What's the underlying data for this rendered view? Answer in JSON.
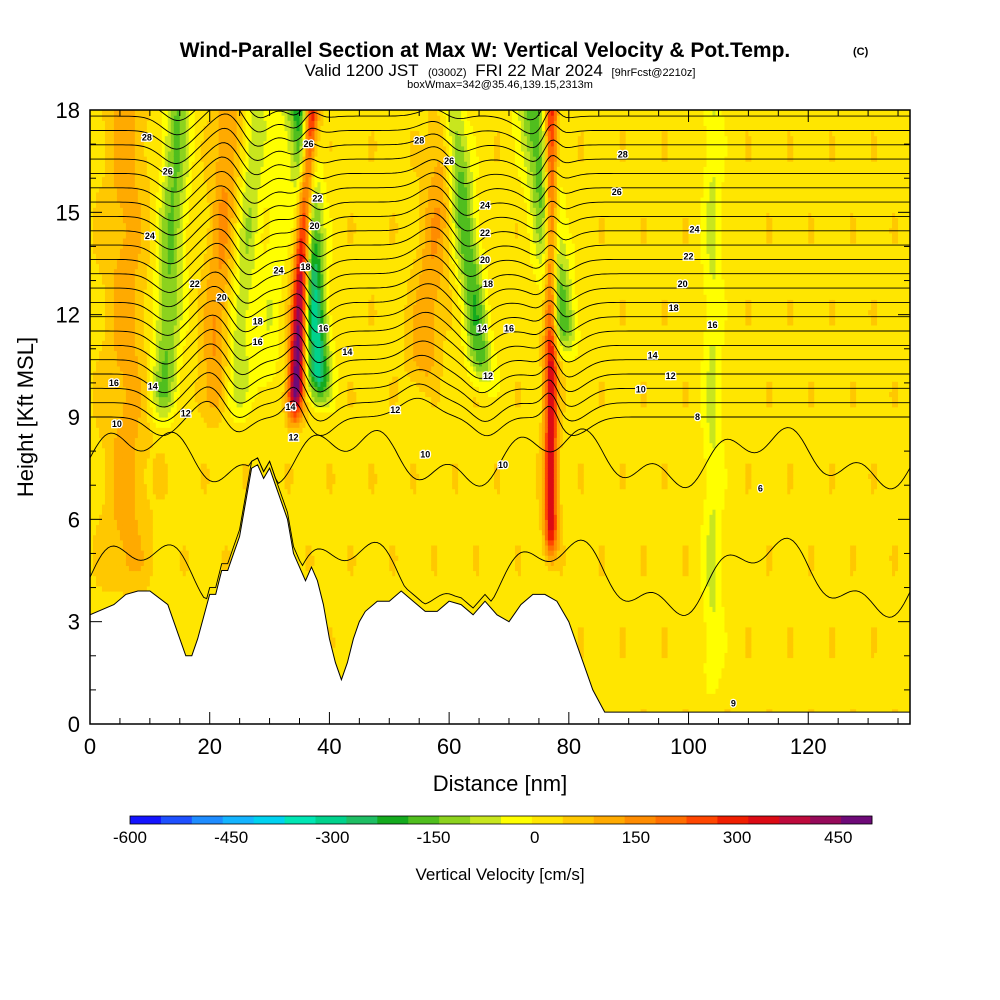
{
  "header": {
    "title": "Wind-Parallel Section at Max W: Vertical Velocity & Pot.Temp.",
    "copyright": "(C)",
    "valid_prefix": "Valid 1200 JST",
    "valid_utc": "(0300Z)",
    "valid_date": "FRI 22 Mar 2024",
    "forecast": "[9hrFcst@2210z]",
    "boxinfo": "boxWmax=342@35.46,139.15,2313m"
  },
  "colorbar": {
    "label": "Vertical Velocity [cm/s]",
    "tick_labels": [
      "-600",
      "-450",
      "-300",
      "-150",
      "0",
      "150",
      "300",
      "450"
    ],
    "colors": [
      "#1414ff",
      "#1e50ff",
      "#1e8cff",
      "#14b4ff",
      "#00d2f0",
      "#00e6b4",
      "#00d28c",
      "#1ebe64",
      "#14aa1e",
      "#50be1e",
      "#8cd21e",
      "#c8e61e",
      "#ffff00",
      "#ffe600",
      "#ffc800",
      "#ffaa00",
      "#ff8c00",
      "#ff6e00",
      "#ff4600",
      "#f01e00",
      "#dc0a14",
      "#be0a3c",
      "#960a5a",
      "#6e0a78"
    ]
  },
  "chart_data": {
    "type": "heatmap",
    "xlabel": "Distance [nm]",
    "ylabel": "Height [Kft MSL]",
    "xlim": [
      0,
      137
    ],
    "ylim": [
      0,
      18
    ],
    "x_ticks": [
      0,
      20,
      40,
      60,
      80,
      100,
      120
    ],
    "y_ticks": [
      0,
      3,
      6,
      9,
      12,
      15,
      18
    ],
    "field": "vertical velocity (cm/s)",
    "color_range": [
      -600,
      500
    ],
    "wave_bands": [
      {
        "x": 12,
        "tilt": 0.28,
        "width": 2.2,
        "w": -170,
        "start_height": 8.5
      },
      {
        "x": 20,
        "tilt": 0.35,
        "width": 2.2,
        "w": 110,
        "start_height": 8.5
      },
      {
        "x": 24,
        "tilt": 0.4,
        "width": 2.0,
        "w": -110,
        "start_height": 8.5
      },
      {
        "x": 29,
        "tilt": 0.38,
        "width": 2.0,
        "w": -60,
        "start_height": 9.0
      },
      {
        "x": 34,
        "tilt": 0.3,
        "width": 1.3,
        "w": 480,
        "start_height": 8.5
      },
      {
        "x": 38.5,
        "tilt": -0.33,
        "width": 2.0,
        "w": -330,
        "start_height": 9.0
      },
      {
        "x": 55,
        "tilt": 0.55,
        "width": 2.5,
        "w": 100,
        "start_height": 9.5
      },
      {
        "x": 66,
        "tilt": -0.65,
        "width": 2.0,
        "w": -200,
        "start_height": 9.5
      },
      {
        "x": 77,
        "tilt": 0.0,
        "width": 1.1,
        "w": 320,
        "start_height": 4.5
      },
      {
        "x": 79.5,
        "tilt": -0.7,
        "width": 2.5,
        "w": -210,
        "start_height": 10.5
      },
      {
        "x": 104,
        "tilt": 0.0,
        "width": 1.6,
        "w": -80,
        "start_height": 0.5
      },
      {
        "x": 6,
        "tilt": 0.0,
        "width": 3.5,
        "w": 80,
        "start_height": 3.5
      }
    ],
    "terrain": {
      "distance": [
        0,
        4,
        6,
        8,
        10,
        13,
        14,
        16,
        17,
        18,
        20,
        21,
        22,
        23,
        24,
        25,
        26,
        27,
        28,
        29,
        30,
        31,
        32,
        33,
        34,
        35,
        36,
        37,
        38,
        39,
        40,
        41,
        42,
        43,
        44,
        45,
        46,
        48,
        50,
        52,
        54,
        56,
        58,
        60,
        62,
        64,
        66,
        68,
        70,
        72,
        74,
        76,
        78,
        80,
        82,
        84,
        86,
        137
      ],
      "height_kft": [
        3.2,
        3.5,
        3.8,
        3.9,
        3.9,
        3.5,
        3.0,
        2.0,
        2.0,
        2.5,
        3.8,
        3.8,
        4.5,
        4.5,
        5.0,
        5.5,
        6.5,
        7.5,
        7.6,
        7.2,
        7.5,
        7.0,
        6.5,
        6.0,
        5.0,
        4.6,
        4.2,
        4.6,
        4.2,
        3.5,
        2.5,
        1.8,
        1.3,
        1.8,
        2.5,
        3.0,
        3.3,
        3.6,
        3.6,
        3.9,
        3.6,
        3.3,
        3.3,
        3.6,
        3.5,
        3.2,
        3.6,
        3.2,
        3.0,
        3.5,
        3.8,
        3.8,
        3.6,
        3.0,
        2.0,
        1.0,
        0.35,
        0.35
      ]
    },
    "theta_contours": {
      "field": "potential temperature",
      "levels": [
        6,
        8,
        9,
        10,
        12,
        14,
        16,
        18,
        20,
        22,
        24,
        26,
        28
      ],
      "labels": [
        {
          "text": "28",
          "x": 9.5,
          "y": 17.2
        },
        {
          "text": "26",
          "x": 13,
          "y": 16.2
        },
        {
          "text": "24",
          "x": 10,
          "y": 14.3
        },
        {
          "text": "22",
          "x": 17.5,
          "y": 12.9
        },
        {
          "text": "20",
          "x": 22,
          "y": 12.5
        },
        {
          "text": "18",
          "x": 28,
          "y": 11.8
        },
        {
          "text": "16",
          "x": 28,
          "y": 11.2
        },
        {
          "text": "16",
          "x": 4,
          "y": 10.0
        },
        {
          "text": "14",
          "x": 10.5,
          "y": 9.9
        },
        {
          "text": "12",
          "x": 16,
          "y": 9.1
        },
        {
          "text": "10",
          "x": 4.5,
          "y": 8.8
        },
        {
          "text": "26",
          "x": 36.5,
          "y": 17.0
        },
        {
          "text": "24",
          "x": 31.5,
          "y": 13.3
        },
        {
          "text": "22",
          "x": 38,
          "y": 15.4
        },
        {
          "text": "20",
          "x": 37.5,
          "y": 14.6
        },
        {
          "text": "18",
          "x": 36,
          "y": 13.4
        },
        {
          "text": "16",
          "x": 39,
          "y": 11.6
        },
        {
          "text": "14",
          "x": 43,
          "y": 10.9
        },
        {
          "text": "14",
          "x": 33.5,
          "y": 9.3
        },
        {
          "text": "12",
          "x": 34,
          "y": 8.4
        },
        {
          "text": "12",
          "x": 51,
          "y": 9.2
        },
        {
          "text": "10",
          "x": 56,
          "y": 7.9
        },
        {
          "text": "28",
          "x": 55,
          "y": 17.1
        },
        {
          "text": "26",
          "x": 60,
          "y": 16.5
        },
        {
          "text": "24",
          "x": 66,
          "y": 15.2
        },
        {
          "text": "22",
          "x": 66,
          "y": 14.4
        },
        {
          "text": "20",
          "x": 66,
          "y": 13.6
        },
        {
          "text": "18",
          "x": 66.5,
          "y": 12.9
        },
        {
          "text": "14",
          "x": 65.5,
          "y": 11.6
        },
        {
          "text": "16",
          "x": 70,
          "y": 11.6
        },
        {
          "text": "12",
          "x": 66.5,
          "y": 10.2
        },
        {
          "text": "10",
          "x": 69,
          "y": 7.6
        },
        {
          "text": "28",
          "x": 89,
          "y": 16.7
        },
        {
          "text": "26",
          "x": 88,
          "y": 15.6
        },
        {
          "text": "24",
          "x": 101,
          "y": 14.5
        },
        {
          "text": "22",
          "x": 100,
          "y": 13.7
        },
        {
          "text": "20",
          "x": 99,
          "y": 12.9
        },
        {
          "text": "18",
          "x": 97.5,
          "y": 12.2
        },
        {
          "text": "16",
          "x": 104,
          "y": 11.7
        },
        {
          "text": "14",
          "x": 94,
          "y": 10.8
        },
        {
          "text": "12",
          "x": 97,
          "y": 10.2
        },
        {
          "text": "10",
          "x": 92,
          "y": 9.8
        },
        {
          "text": "8",
          "x": 101.5,
          "y": 9.0
        },
        {
          "text": "6",
          "x": 112,
          "y": 6.9
        },
        {
          "text": "9",
          "x": 107.5,
          "y": 0.6
        }
      ]
    }
  }
}
